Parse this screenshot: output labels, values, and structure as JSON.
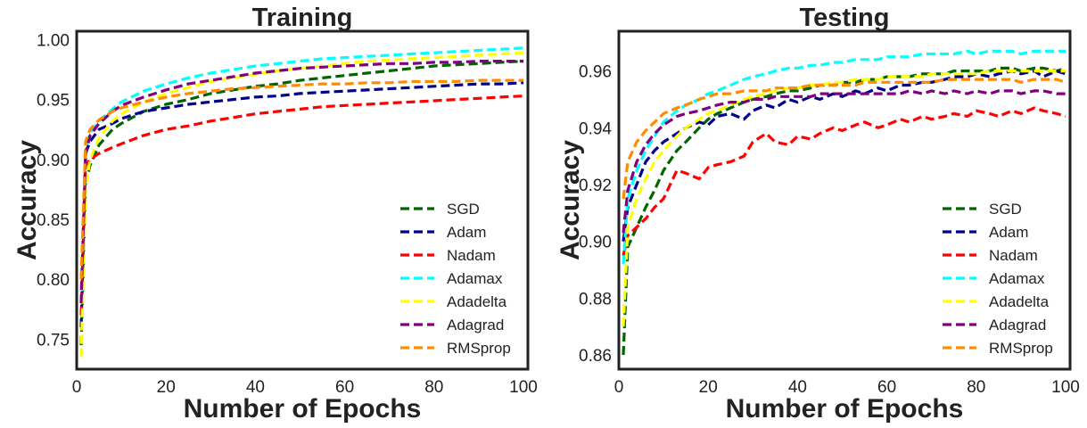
{
  "chart_data": [
    {
      "type": "line",
      "title": "Training",
      "xlabel": "Number of Epochs",
      "ylabel": "Accuracy",
      "xlim": [
        0,
        101
      ],
      "ylim": [
        0.725,
        1.007
      ],
      "xticks": [
        0,
        20,
        40,
        60,
        80,
        100
      ],
      "xtick_labels": [
        "0",
        "20",
        "40",
        "60",
        "80",
        "100"
      ],
      "yticks": [
        0.75,
        0.8,
        0.85,
        0.9,
        0.95,
        1.0
      ],
      "ytick_labels": [
        "0.75",
        "0.80",
        "0.85",
        "0.90",
        "0.95",
        "1.00"
      ],
      "grid": false,
      "legend": "lower-right",
      "series": [
        {
          "name": "SGD",
          "color": "#006400",
          "x": [
            1,
            2,
            3,
            5,
            8,
            10,
            15,
            20,
            25,
            30,
            35,
            40,
            45,
            50,
            55,
            60,
            65,
            70,
            75,
            80,
            85,
            90,
            95,
            100
          ],
          "y": [
            0.745,
            0.88,
            0.895,
            0.912,
            0.925,
            0.93,
            0.94,
            0.946,
            0.95,
            0.955,
            0.958,
            0.961,
            0.963,
            0.966,
            0.968,
            0.97,
            0.972,
            0.974,
            0.976,
            0.978,
            0.979,
            0.98,
            0.981,
            0.982
          ]
        },
        {
          "name": "Adam",
          "color": "#00008b",
          "x": [
            1,
            2,
            3,
            5,
            8,
            10,
            15,
            20,
            25,
            30,
            35,
            40,
            45,
            50,
            55,
            60,
            65,
            70,
            75,
            80,
            85,
            90,
            95,
            100
          ],
          "y": [
            0.76,
            0.905,
            0.915,
            0.925,
            0.93,
            0.934,
            0.94,
            0.943,
            0.946,
            0.948,
            0.95,
            0.952,
            0.953,
            0.955,
            0.956,
            0.957,
            0.958,
            0.959,
            0.96,
            0.961,
            0.962,
            0.963,
            0.963,
            0.964
          ]
        },
        {
          "name": "Nadam",
          "color": "#ff0000",
          "x": [
            1,
            2,
            3,
            5,
            8,
            10,
            15,
            20,
            25,
            30,
            35,
            40,
            45,
            50,
            55,
            60,
            65,
            70,
            75,
            80,
            85,
            90,
            95,
            100
          ],
          "y": [
            0.77,
            0.895,
            0.9,
            0.905,
            0.91,
            0.913,
            0.92,
            0.925,
            0.928,
            0.932,
            0.935,
            0.938,
            0.94,
            0.942,
            0.944,
            0.945,
            0.946,
            0.947,
            0.948,
            0.949,
            0.95,
            0.951,
            0.952,
            0.953
          ]
        },
        {
          "name": "Adamax",
          "color": "#00ffff",
          "x": [
            1,
            2,
            3,
            5,
            8,
            10,
            15,
            20,
            25,
            30,
            35,
            40,
            45,
            50,
            55,
            60,
            65,
            70,
            75,
            80,
            85,
            90,
            95,
            100
          ],
          "y": [
            0.79,
            0.91,
            0.922,
            0.932,
            0.942,
            0.948,
            0.957,
            0.963,
            0.968,
            0.972,
            0.975,
            0.978,
            0.98,
            0.982,
            0.984,
            0.985,
            0.986,
            0.987,
            0.988,
            0.989,
            0.99,
            0.991,
            0.992,
            0.993
          ]
        },
        {
          "name": "Adadelta",
          "color": "#ffff00",
          "x": [
            1,
            2,
            3,
            5,
            8,
            10,
            15,
            20,
            25,
            30,
            35,
            40,
            45,
            50,
            55,
            60,
            65,
            70,
            75,
            80,
            85,
            90,
            95,
            100
          ],
          "y": [
            0.735,
            0.875,
            0.9,
            0.918,
            0.932,
            0.938,
            0.948,
            0.955,
            0.96,
            0.965,
            0.968,
            0.971,
            0.974,
            0.976,
            0.978,
            0.98,
            0.982,
            0.983,
            0.984,
            0.985,
            0.986,
            0.987,
            0.988,
            0.989
          ]
        },
        {
          "name": "Adagrad",
          "color": "#800080",
          "x": [
            1,
            2,
            3,
            5,
            8,
            10,
            15,
            20,
            25,
            30,
            35,
            40,
            45,
            50,
            55,
            60,
            65,
            70,
            75,
            80,
            85,
            90,
            95,
            100
          ],
          "y": [
            0.78,
            0.905,
            0.92,
            0.93,
            0.94,
            0.945,
            0.952,
            0.958,
            0.963,
            0.966,
            0.969,
            0.972,
            0.974,
            0.976,
            0.977,
            0.978,
            0.979,
            0.98,
            0.98,
            0.981,
            0.981,
            0.982,
            0.982,
            0.982
          ]
        },
        {
          "name": "RMSprop",
          "color": "#ff8c00",
          "x": [
            1,
            2,
            3,
            5,
            8,
            10,
            15,
            20,
            25,
            30,
            35,
            40,
            45,
            50,
            55,
            60,
            65,
            70,
            75,
            80,
            85,
            90,
            95,
            100
          ],
          "y": [
            0.8,
            0.915,
            0.925,
            0.933,
            0.94,
            0.943,
            0.948,
            0.952,
            0.955,
            0.957,
            0.959,
            0.96,
            0.961,
            0.962,
            0.963,
            0.963,
            0.964,
            0.964,
            0.965,
            0.965,
            0.965,
            0.966,
            0.966,
            0.966
          ]
        }
      ]
    },
    {
      "type": "line",
      "title": "Testing",
      "xlabel": "Number of Epochs",
      "ylabel": "Accuracy",
      "xlim": [
        0,
        101
      ],
      "ylim": [
        0.855,
        0.974
      ],
      "xticks": [
        0,
        20,
        40,
        60,
        80,
        100
      ],
      "xtick_labels": [
        "0",
        "20",
        "40",
        "60",
        "80",
        "100"
      ],
      "yticks": [
        0.86,
        0.88,
        0.9,
        0.92,
        0.94,
        0.96
      ],
      "ytick_labels": [
        "0.86",
        "0.88",
        "0.90",
        "0.92",
        "0.94",
        "0.96"
      ],
      "grid": false,
      "legend": "lower-right",
      "series": [
        {
          "name": "SGD",
          "color": "#006400",
          "x": [
            1,
            2,
            4,
            6,
            8,
            10,
            13,
            15,
            18,
            20,
            22,
            25,
            28,
            30,
            33,
            35,
            38,
            40,
            43,
            45,
            48,
            50,
            53,
            55,
            58,
            60,
            63,
            65,
            68,
            70,
            73,
            75,
            78,
            80,
            83,
            85,
            88,
            90,
            93,
            95,
            98,
            100
          ],
          "y": [
            0.86,
            0.898,
            0.905,
            0.912,
            0.918,
            0.925,
            0.932,
            0.935,
            0.94,
            0.943,
            0.945,
            0.947,
            0.949,
            0.95,
            0.951,
            0.952,
            0.953,
            0.953,
            0.954,
            0.955,
            0.955,
            0.956,
            0.956,
            0.957,
            0.957,
            0.958,
            0.958,
            0.958,
            0.959,
            0.959,
            0.959,
            0.96,
            0.96,
            0.96,
            0.96,
            0.961,
            0.961,
            0.96,
            0.961,
            0.961,
            0.96,
            0.961
          ]
        },
        {
          "name": "Adam",
          "color": "#00008b",
          "x": [
            1,
            2,
            4,
            6,
            8,
            10,
            13,
            15,
            18,
            20,
            22,
            25,
            28,
            30,
            33,
            35,
            38,
            40,
            43,
            45,
            48,
            50,
            53,
            55,
            58,
            60,
            63,
            65,
            68,
            70,
            73,
            75,
            78,
            80,
            83,
            85,
            88,
            90,
            93,
            95,
            98,
            100
          ],
          "y": [
            0.9,
            0.912,
            0.92,
            0.928,
            0.932,
            0.935,
            0.938,
            0.94,
            0.942,
            0.941,
            0.944,
            0.945,
            0.943,
            0.946,
            0.948,
            0.947,
            0.95,
            0.949,
            0.951,
            0.95,
            0.952,
            0.951,
            0.953,
            0.952,
            0.954,
            0.953,
            0.955,
            0.955,
            0.956,
            0.956,
            0.957,
            0.958,
            0.958,
            0.959,
            0.958,
            0.959,
            0.96,
            0.959,
            0.96,
            0.958,
            0.96,
            0.959
          ]
        },
        {
          "name": "Nadam",
          "color": "#ff0000",
          "x": [
            1,
            2,
            4,
            6,
            8,
            10,
            13,
            15,
            18,
            20,
            22,
            25,
            28,
            30,
            33,
            35,
            38,
            40,
            43,
            45,
            48,
            50,
            53,
            55,
            58,
            60,
            63,
            65,
            68,
            70,
            73,
            75,
            78,
            80,
            83,
            85,
            88,
            90,
            93,
            95,
            98,
            100
          ],
          "y": [
            0.895,
            0.902,
            0.905,
            0.908,
            0.912,
            0.915,
            0.925,
            0.924,
            0.922,
            0.926,
            0.927,
            0.928,
            0.93,
            0.935,
            0.938,
            0.935,
            0.934,
            0.937,
            0.936,
            0.938,
            0.94,
            0.939,
            0.941,
            0.942,
            0.94,
            0.941,
            0.943,
            0.942,
            0.944,
            0.943,
            0.944,
            0.945,
            0.944,
            0.946,
            0.945,
            0.944,
            0.946,
            0.945,
            0.947,
            0.946,
            0.945,
            0.944
          ]
        },
        {
          "name": "Adamax",
          "color": "#00ffff",
          "x": [
            1,
            2,
            4,
            6,
            8,
            10,
            13,
            15,
            18,
            20,
            22,
            25,
            28,
            30,
            33,
            35,
            38,
            40,
            43,
            45,
            48,
            50,
            53,
            55,
            58,
            60,
            63,
            65,
            68,
            70,
            73,
            75,
            78,
            80,
            83,
            85,
            88,
            90,
            93,
            95,
            98,
            100
          ],
          "y": [
            0.892,
            0.915,
            0.925,
            0.932,
            0.937,
            0.942,
            0.946,
            0.948,
            0.95,
            0.952,
            0.953,
            0.955,
            0.957,
            0.958,
            0.959,
            0.96,
            0.961,
            0.961,
            0.962,
            0.962,
            0.963,
            0.963,
            0.964,
            0.964,
            0.964,
            0.965,
            0.965,
            0.965,
            0.966,
            0.966,
            0.966,
            0.966,
            0.967,
            0.966,
            0.967,
            0.967,
            0.967,
            0.966,
            0.967,
            0.967,
            0.967,
            0.967
          ]
        },
        {
          "name": "Adadelta",
          "color": "#ffff00",
          "x": [
            1,
            2,
            4,
            6,
            8,
            10,
            13,
            15,
            18,
            20,
            22,
            25,
            28,
            30,
            33,
            35,
            38,
            40,
            43,
            45,
            48,
            50,
            53,
            55,
            58,
            60,
            63,
            65,
            68,
            70,
            73,
            75,
            78,
            80,
            83,
            85,
            88,
            90,
            93,
            95,
            98,
            100
          ],
          "y": [
            0.87,
            0.905,
            0.915,
            0.922,
            0.928,
            0.932,
            0.937,
            0.94,
            0.943,
            0.945,
            0.946,
            0.948,
            0.95,
            0.951,
            0.952,
            0.953,
            0.954,
            0.954,
            0.955,
            0.955,
            0.956,
            0.956,
            0.957,
            0.957,
            0.957,
            0.958,
            0.958,
            0.958,
            0.958,
            0.959,
            0.959,
            0.959,
            0.959,
            0.959,
            0.96,
            0.96,
            0.96,
            0.96,
            0.96,
            0.96,
            0.96,
            0.96
          ]
        },
        {
          "name": "Adagrad",
          "color": "#800080",
          "x": [
            1,
            2,
            4,
            6,
            8,
            10,
            13,
            15,
            18,
            20,
            22,
            25,
            28,
            30,
            33,
            35,
            38,
            40,
            43,
            45,
            48,
            50,
            53,
            55,
            58,
            60,
            63,
            65,
            68,
            70,
            73,
            75,
            78,
            80,
            83,
            85,
            88,
            90,
            93,
            95,
            98,
            100
          ],
          "y": [
            0.903,
            0.918,
            0.928,
            0.934,
            0.938,
            0.941,
            0.944,
            0.945,
            0.946,
            0.947,
            0.948,
            0.949,
            0.949,
            0.95,
            0.95,
            0.951,
            0.951,
            0.951,
            0.951,
            0.952,
            0.952,
            0.952,
            0.952,
            0.952,
            0.952,
            0.952,
            0.952,
            0.953,
            0.952,
            0.953,
            0.952,
            0.953,
            0.952,
            0.953,
            0.952,
            0.953,
            0.953,
            0.952,
            0.953,
            0.953,
            0.952,
            0.952
          ]
        },
        {
          "name": "RMSprop",
          "color": "#ff8c00",
          "x": [
            1,
            2,
            4,
            6,
            8,
            10,
            13,
            15,
            18,
            20,
            22,
            25,
            28,
            30,
            33,
            35,
            38,
            40,
            43,
            45,
            48,
            50,
            53,
            55,
            58,
            60,
            63,
            65,
            68,
            70,
            73,
            75,
            78,
            80,
            83,
            85,
            88,
            90,
            93,
            95,
            98,
            100
          ],
          "y": [
            0.915,
            0.928,
            0.935,
            0.939,
            0.942,
            0.945,
            0.947,
            0.948,
            0.95,
            0.951,
            0.952,
            0.952,
            0.953,
            0.953,
            0.953,
            0.954,
            0.954,
            0.954,
            0.955,
            0.955,
            0.955,
            0.955,
            0.955,
            0.956,
            0.956,
            0.956,
            0.956,
            0.956,
            0.956,
            0.956,
            0.957,
            0.957,
            0.957,
            0.957,
            0.957,
            0.957,
            0.957,
            0.956,
            0.957,
            0.957,
            0.957,
            0.956
          ]
        }
      ]
    }
  ]
}
